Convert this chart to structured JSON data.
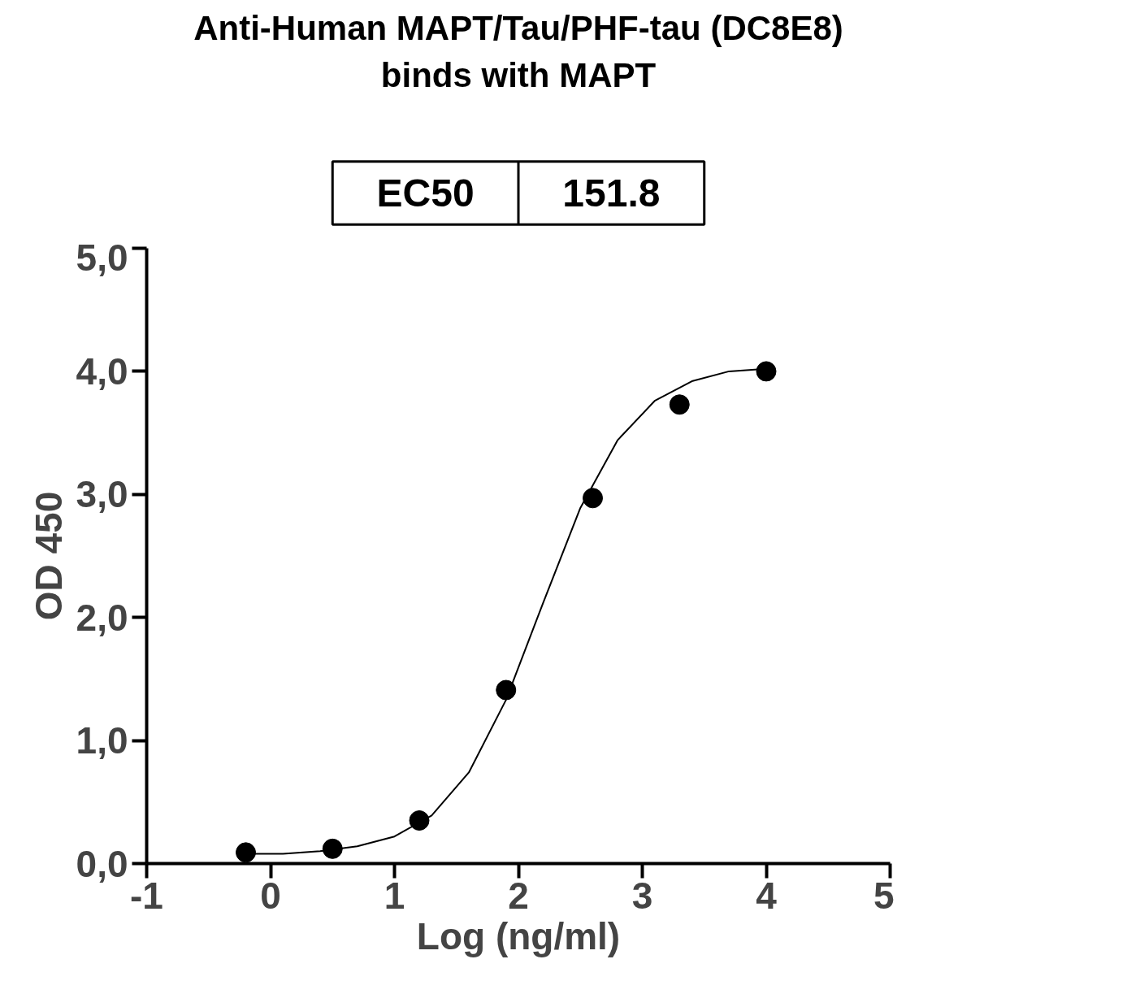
{
  "chart_data": {
    "type": "scatter",
    "title": "Anti-Human MAPT/Tau/PHF-tau (DC8E8)\nbinds with MAPT",
    "xlabel": "Log (ng/ml)",
    "ylabel": "OD 450",
    "annotations": [
      "EC50",
      "151.8"
    ],
    "xlim": [
      -1,
      5
    ],
    "ylim": [
      0,
      5
    ],
    "xticks": [
      {
        "value": -1,
        "label": "-1"
      },
      0,
      1,
      2,
      3,
      4,
      5
    ],
    "yticks": [
      {
        "value": 0,
        "label": "0,0"
      },
      {
        "value": 1,
        "label": "1,0"
      },
      {
        "value": 2,
        "label": "2,0"
      },
      {
        "value": 3,
        "label": "3,0"
      },
      {
        "value": 4,
        "label": "4,0"
      },
      {
        "value": 5,
        "label": "5,0"
      }
    ],
    "grid": false,
    "marker": "circle",
    "series": [
      {
        "color": "#000000",
        "x": [
          -0.2,
          0.5,
          1.2,
          1.9,
          2.6,
          3.3,
          4.0
        ],
        "values": [
          0.09,
          0.12,
          0.35,
          1.41,
          2.97,
          3.73,
          4.0
        ]
      },
      {
        "type": "line",
        "color": "#000000",
        "marker": "none",
        "line_style": "solid",
        "x": [
          -0.2,
          0.1,
          0.4,
          0.7,
          1.0,
          1.3,
          1.6,
          1.9,
          2.2,
          2.5,
          2.8,
          3.1,
          3.4,
          3.7,
          4.0
        ],
        "values": [
          0.08,
          0.08,
          0.1,
          0.14,
          0.22,
          0.39,
          0.74,
          1.33,
          2.12,
          2.89,
          3.44,
          3.76,
          3.92,
          4.0,
          4.02
        ]
      }
    ]
  }
}
